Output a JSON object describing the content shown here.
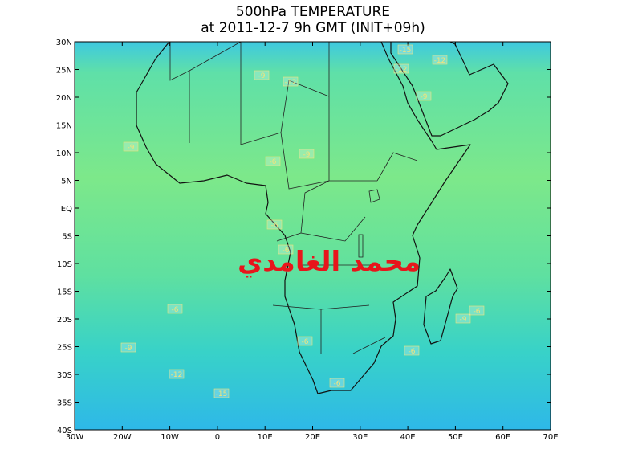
{
  "title": [
    "500hPa TEMPERATURE",
    "at 2011-12-7 9h GMT (INIT+09h)"
  ],
  "lat_ticks": [
    "30N",
    "25N",
    "20N",
    "15N",
    "10N",
    "5N",
    "EQ",
    "5S",
    "10S",
    "15S",
    "20S",
    "25S",
    "30S",
    "35S",
    "40S"
  ],
  "lon_ticks": [
    "30W",
    "20W",
    "10W",
    "0",
    "10E",
    "20E",
    "30E",
    "40E",
    "50E",
    "60E",
    "70E"
  ],
  "contour_labels": [
    "-15",
    "-12",
    "-12",
    "-9",
    "-12",
    "-9",
    "-9",
    "-9",
    "-6",
    "-6",
    "-6",
    "-6",
    "-6",
    "-9",
    "-9",
    "-6",
    "-6",
    "-12",
    "-6",
    "-15"
  ],
  "watermark": "محمد الغامدي"
}
